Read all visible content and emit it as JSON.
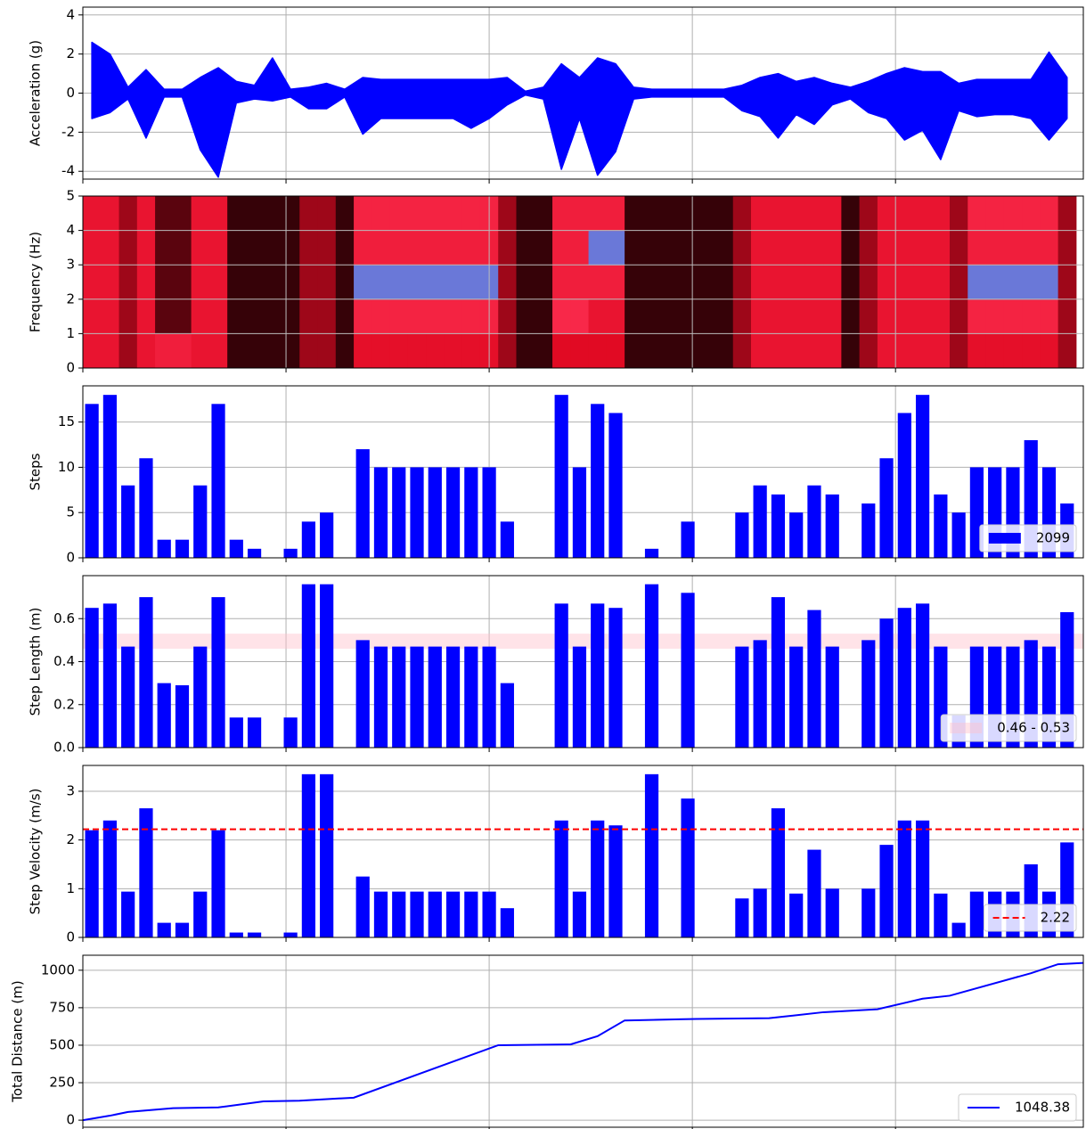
{
  "chart_data": [
    {
      "type": "envelope",
      "ylabel": "Acceleration (g)",
      "color": "#0000ff",
      "grid": true,
      "xlim": [
        0,
        1108
      ],
      "xticks": [
        0,
        225,
        450,
        675,
        900
      ],
      "ylim": [
        -4.4,
        4.4
      ],
      "yticks": [
        -4,
        -2,
        0,
        2,
        4
      ],
      "x": [
        10,
        30,
        50,
        70,
        90,
        110,
        130,
        150,
        170,
        190,
        210,
        230,
        250,
        270,
        290,
        310,
        330,
        350,
        370,
        390,
        410,
        430,
        450,
        470,
        490,
        510,
        530,
        550,
        570,
        590,
        610,
        630,
        650,
        670,
        690,
        710,
        730,
        750,
        770,
        790,
        810,
        830,
        850,
        870,
        890,
        910,
        930,
        950,
        970,
        990,
        1010,
        1030,
        1050,
        1070,
        1090
      ],
      "upper": [
        2.6,
        2.0,
        0.3,
        1.2,
        0.2,
        0.2,
        0.8,
        1.3,
        0.6,
        0.4,
        1.8,
        0.2,
        0.3,
        0.5,
        0.2,
        0.8,
        0.7,
        0.7,
        0.7,
        0.7,
        0.7,
        0.7,
        0.7,
        0.8,
        0.1,
        0.3,
        1.5,
        0.8,
        1.8,
        1.5,
        0.3,
        0.2,
        0.2,
        0.2,
        0.2,
        0.2,
        0.4,
        0.8,
        1.0,
        0.6,
        0.8,
        0.5,
        0.3,
        0.6,
        1.0,
        1.3,
        1.1,
        1.1,
        0.5,
        0.7,
        0.7,
        0.7,
        0.7,
        2.1,
        0.8
      ],
      "lower": [
        -1.3,
        -1.0,
        -0.3,
        -2.3,
        -0.2,
        -0.2,
        -2.9,
        -4.3,
        -0.5,
        -0.3,
        -0.4,
        -0.2,
        -0.8,
        -0.8,
        -0.2,
        -2.1,
        -1.3,
        -1.3,
        -1.3,
        -1.3,
        -1.3,
        -1.8,
        -1.3,
        -0.6,
        -0.1,
        -0.3,
        -3.9,
        -1.3,
        -4.2,
        -3.0,
        -0.3,
        -0.2,
        -0.2,
        -0.2,
        -0.2,
        -0.2,
        -0.9,
        -1.2,
        -2.3,
        -1.1,
        -1.6,
        -0.6,
        -0.3,
        -1.0,
        -1.3,
        -2.4,
        -1.9,
        -3.4,
        -0.9,
        -1.2,
        -1.1,
        -1.1,
        -1.3,
        -2.4,
        -1.3
      ]
    },
    {
      "type": "heatmap",
      "ylabel": "Frequency (Hz)",
      "grid": true,
      "xlim": [
        0,
        1108
      ],
      "xticks": [
        0,
        225,
        450,
        675,
        900
      ],
      "ylim": [
        0,
        5
      ],
      "yticks": [
        0,
        1,
        2,
        3,
        4,
        5
      ],
      "x_bins": [
        0,
        20,
        40,
        60,
        80,
        100,
        120,
        140,
        160,
        180,
        200,
        220,
        240,
        260,
        280,
        300,
        320,
        340,
        360,
        380,
        400,
        420,
        440,
        460,
        480,
        500,
        520,
        540,
        560,
        580,
        600,
        620,
        640,
        660,
        680,
        700,
        720,
        740,
        760,
        780,
        800,
        820,
        840,
        860,
        880,
        900,
        920,
        940,
        960,
        980,
        1000,
        1020,
        1040,
        1060,
        1080,
        1100
      ],
      "y_bins": [
        0,
        1,
        2,
        3,
        4,
        5
      ],
      "z": [
        [
          0.6,
          0.6,
          0.35,
          0.6,
          0.7,
          0.7,
          0.6,
          0.6,
          0.12,
          0.12,
          0.12,
          0.12,
          0.35,
          0.35,
          0.12,
          0.55,
          0.55,
          0.55,
          0.55,
          0.55,
          0.55,
          0.55,
          0.55,
          0.35,
          0.12,
          0.12,
          0.5,
          0.5,
          0.5,
          0.5,
          0.12,
          0.12,
          0.12,
          0.12,
          0.12,
          0.12,
          0.35,
          0.6,
          0.6,
          0.6,
          0.6,
          0.6,
          0.12,
          0.35,
          0.6,
          0.6,
          0.6,
          0.6,
          0.35,
          0.55,
          0.55,
          0.55,
          0.55,
          0.55,
          0.35
        ],
        [
          0.6,
          0.6,
          0.35,
          0.6,
          0.2,
          0.2,
          0.6,
          0.6,
          0.12,
          0.12,
          0.12,
          0.12,
          0.35,
          0.35,
          0.12,
          0.75,
          0.75,
          0.75,
          0.75,
          0.75,
          0.75,
          0.75,
          0.75,
          0.35,
          0.12,
          0.12,
          0.8,
          0.8,
          0.6,
          0.6,
          0.12,
          0.12,
          0.12,
          0.12,
          0.12,
          0.12,
          0.35,
          0.6,
          0.6,
          0.6,
          0.6,
          0.6,
          0.12,
          0.35,
          0.6,
          0.6,
          0.6,
          0.6,
          0.35,
          0.75,
          0.75,
          0.75,
          0.75,
          0.75,
          0.35
        ],
        [
          0.6,
          0.6,
          0.35,
          0.6,
          0.2,
          0.2,
          0.6,
          0.6,
          0.12,
          0.12,
          0.12,
          0.12,
          0.35,
          0.35,
          0.12,
          0.95,
          0.95,
          0.95,
          0.95,
          0.95,
          0.95,
          0.95,
          0.95,
          0.35,
          0.12,
          0.12,
          0.7,
          0.7,
          0.7,
          0.7,
          0.12,
          0.12,
          0.12,
          0.12,
          0.12,
          0.12,
          0.35,
          0.6,
          0.6,
          0.6,
          0.6,
          0.6,
          0.12,
          0.35,
          0.6,
          0.6,
          0.6,
          0.6,
          0.35,
          0.95,
          0.95,
          0.95,
          0.95,
          0.95,
          0.35
        ],
        [
          0.6,
          0.6,
          0.35,
          0.6,
          0.2,
          0.2,
          0.6,
          0.6,
          0.12,
          0.12,
          0.12,
          0.12,
          0.35,
          0.35,
          0.12,
          0.7,
          0.7,
          0.7,
          0.7,
          0.7,
          0.7,
          0.7,
          0.7,
          0.35,
          0.12,
          0.12,
          0.7,
          0.7,
          0.95,
          0.95,
          0.12,
          0.12,
          0.12,
          0.12,
          0.12,
          0.12,
          0.35,
          0.6,
          0.6,
          0.6,
          0.6,
          0.6,
          0.12,
          0.35,
          0.6,
          0.6,
          0.6,
          0.6,
          0.35,
          0.7,
          0.7,
          0.7,
          0.7,
          0.7,
          0.35
        ],
        [
          0.6,
          0.6,
          0.35,
          0.6,
          0.2,
          0.2,
          0.6,
          0.6,
          0.12,
          0.12,
          0.12,
          0.12,
          0.35,
          0.35,
          0.12,
          0.75,
          0.75,
          0.75,
          0.75,
          0.75,
          0.75,
          0.75,
          0.75,
          0.35,
          0.12,
          0.12,
          0.7,
          0.7,
          0.7,
          0.7,
          0.12,
          0.12,
          0.12,
          0.12,
          0.12,
          0.12,
          0.35,
          0.6,
          0.6,
          0.6,
          0.6,
          0.6,
          0.12,
          0.35,
          0.6,
          0.6,
          0.6,
          0.6,
          0.35,
          0.75,
          0.75,
          0.75,
          0.75,
          0.75,
          0.35
        ]
      ]
    },
    {
      "type": "bar",
      "ylabel": "Steps",
      "grid": true,
      "legend": "lower right",
      "xlim": [
        0,
        1108
      ],
      "xticks": [
        0,
        225,
        450,
        675,
        900
      ],
      "ylim": [
        0,
        19
      ],
      "yticks": [
        0,
        5,
        10,
        15
      ],
      "x": [
        10,
        30,
        50,
        70,
        90,
        110,
        130,
        150,
        170,
        190,
        210,
        230,
        250,
        270,
        290,
        310,
        330,
        350,
        370,
        390,
        410,
        430,
        450,
        470,
        490,
        510,
        530,
        550,
        570,
        590,
        610,
        630,
        650,
        670,
        690,
        710,
        730,
        750,
        770,
        790,
        810,
        830,
        850,
        870,
        890,
        910,
        930,
        950,
        970,
        990,
        1010,
        1030,
        1050,
        1070,
        1090
      ],
      "series": [
        {
          "name": "2099",
          "color": "#0000ff",
          "values": [
            17,
            18,
            8,
            11,
            2,
            2,
            8,
            17,
            2,
            1,
            0,
            1,
            4,
            5,
            0,
            12,
            10,
            10,
            10,
            10,
            10,
            10,
            10,
            4,
            0,
            0,
            18,
            10,
            17,
            16,
            0,
            1,
            0,
            4,
            0,
            0,
            5,
            8,
            7,
            5,
            8,
            7,
            0,
            6,
            11,
            16,
            18,
            7,
            5,
            10,
            10,
            10,
            13,
            10,
            6
          ]
        }
      ]
    },
    {
      "type": "bar",
      "ylabel": "Step Length (m)",
      "grid": true,
      "legend": "lower right",
      "xlim": [
        0,
        1108
      ],
      "xticks": [
        0,
        225,
        450,
        675,
        900
      ],
      "ylim": [
        0,
        0.8
      ],
      "yticks": [
        {
          "value": 0,
          "label": "0.0"
        },
        0.2,
        0.4,
        0.6
      ],
      "band": {
        "name": "0.46 - 0.53",
        "range": [
          0.46,
          0.53
        ],
        "color": "#ffc0cb"
      },
      "x": [
        10,
        30,
        50,
        70,
        90,
        110,
        130,
        150,
        170,
        190,
        210,
        230,
        250,
        270,
        290,
        310,
        330,
        350,
        370,
        390,
        410,
        430,
        450,
        470,
        490,
        510,
        530,
        550,
        570,
        590,
        610,
        630,
        650,
        670,
        690,
        710,
        730,
        750,
        770,
        790,
        810,
        830,
        850,
        870,
        890,
        910,
        930,
        950,
        970,
        990,
        1010,
        1030,
        1050,
        1070,
        1090
      ],
      "series": [
        {
          "color": "#0000ff",
          "values": [
            0.65,
            0.67,
            0.47,
            0.7,
            0.3,
            0.29,
            0.47,
            0.7,
            0.14,
            0.14,
            0,
            0.14,
            0.76,
            0.76,
            0,
            0.5,
            0.47,
            0.47,
            0.47,
            0.47,
            0.47,
            0.47,
            0.47,
            0.3,
            0,
            0,
            0.67,
            0.47,
            0.67,
            0.65,
            0,
            0.76,
            0,
            0.72,
            0,
            0,
            0.47,
            0.5,
            0.7,
            0.47,
            0.64,
            0.47,
            0,
            0.5,
            0.6,
            0.65,
            0.67,
            0.47,
            0.15,
            0.47,
            0.47,
            0.47,
            0.5,
            0.47,
            0.63
          ]
        }
      ]
    },
    {
      "type": "bar",
      "ylabel": "Step Velocity (m/s)",
      "grid": true,
      "legend": "lower right",
      "xlim": [
        0,
        1108
      ],
      "xticks": [
        0,
        225,
        450,
        675,
        900
      ],
      "ylim": [
        0,
        3.53
      ],
      "yticks": [
        0,
        1,
        2,
        3
      ],
      "threshold": {
        "value": 2.22,
        "color": "#ff0000"
      },
      "x": [
        10,
        30,
        50,
        70,
        90,
        110,
        130,
        150,
        170,
        190,
        210,
        230,
        250,
        270,
        290,
        310,
        330,
        350,
        370,
        390,
        410,
        430,
        450,
        470,
        490,
        510,
        530,
        550,
        570,
        590,
        610,
        630,
        650,
        670,
        690,
        710,
        730,
        750,
        770,
        790,
        810,
        830,
        850,
        870,
        890,
        910,
        930,
        950,
        970,
        990,
        1010,
        1030,
        1050,
        1070,
        1090
      ],
      "series": [
        {
          "color": "#0000ff",
          "values": [
            2.2,
            2.4,
            0.94,
            2.65,
            0.3,
            0.3,
            0.94,
            2.2,
            0.1,
            0.1,
            0,
            0.1,
            3.35,
            3.35,
            0,
            1.25,
            0.94,
            0.94,
            0.94,
            0.94,
            0.94,
            0.94,
            0.94,
            0.6,
            0,
            0,
            2.4,
            0.94,
            2.4,
            2.3,
            0,
            3.35,
            0,
            2.85,
            0,
            0,
            0.8,
            1,
            2.65,
            0.9,
            1.8,
            1,
            0,
            1,
            1.9,
            2.4,
            2.4,
            0.9,
            0.3,
            0.94,
            0.94,
            0.94,
            1.5,
            0.94,
            1.95
          ]
        }
      ]
    },
    {
      "type": "line",
      "ylabel": "Total Distance (m)",
      "grid": true,
      "legend": "lower right",
      "xlim": [
        0,
        1108
      ],
      "xticks": [
        0,
        225,
        450,
        675,
        900
      ],
      "ylim": [
        -47,
        1100
      ],
      "yticks": [
        0,
        250,
        500,
        750,
        1000
      ],
      "x": [
        0,
        30,
        50,
        100,
        150,
        200,
        240,
        300,
        460,
        540,
        570,
        600,
        680,
        760,
        820,
        880,
        930,
        960,
        1050,
        1080,
        1108
      ],
      "series": [
        {
          "color": "#0000ff",
          "values": [
            0,
            30,
            55,
            80,
            85,
            125,
            130,
            150,
            500,
            505,
            560,
            665,
            675,
            680,
            720,
            740,
            810,
            830,
            980,
            1040,
            1048.38
          ]
        }
      ]
    }
  ]
}
